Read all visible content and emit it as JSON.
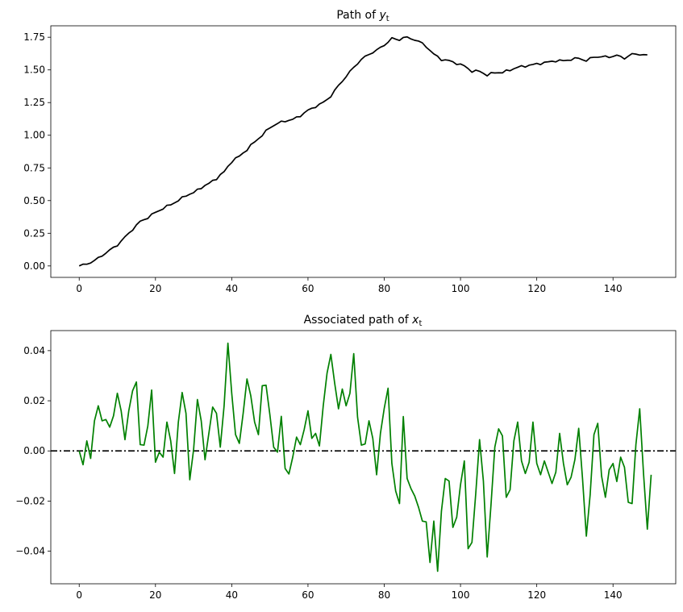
{
  "chart_data": [
    {
      "type": "line",
      "title": "Path of ",
      "title_var": "y",
      "title_sub": "t",
      "xlabel": "",
      "ylabel": "",
      "xlim": [
        -7.45,
        156.45
      ],
      "ylim": [
        -0.0875,
        1.8375
      ],
      "xticks": [
        0,
        20,
        40,
        60,
        80,
        100,
        120,
        140
      ],
      "yticks": [
        0.0,
        0.25,
        0.5,
        0.75,
        1.0,
        1.25,
        1.5,
        1.75
      ],
      "ytick_labels": [
        "0.00",
        "0.25",
        "0.50",
        "0.75",
        "1.00",
        "1.25",
        "1.50",
        "1.75"
      ],
      "color": "#000000",
      "keypoints": [
        [
          0,
          0.0
        ],
        [
          2,
          0.015
        ],
        [
          4,
          0.04
        ],
        [
          6,
          0.08
        ],
        [
          8,
          0.12
        ],
        [
          10,
          0.16
        ],
        [
          12,
          0.22
        ],
        [
          14,
          0.28
        ],
        [
          16,
          0.34
        ],
        [
          18,
          0.37
        ],
        [
          20,
          0.41
        ],
        [
          22,
          0.44
        ],
        [
          24,
          0.47
        ],
        [
          26,
          0.5
        ],
        [
          28,
          0.54
        ],
        [
          30,
          0.56
        ],
        [
          32,
          0.6
        ],
        [
          34,
          0.63
        ],
        [
          36,
          0.67
        ],
        [
          38,
          0.72
        ],
        [
          40,
          0.8
        ],
        [
          42,
          0.84
        ],
        [
          44,
          0.89
        ],
        [
          46,
          0.95
        ],
        [
          48,
          1.0
        ],
        [
          50,
          1.06
        ],
        [
          52,
          1.09
        ],
        [
          54,
          1.11
        ],
        [
          56,
          1.12
        ],
        [
          58,
          1.15
        ],
        [
          60,
          1.19
        ],
        [
          62,
          1.22
        ],
        [
          64,
          1.25
        ],
        [
          66,
          1.3
        ],
        [
          68,
          1.38
        ],
        [
          70,
          1.45
        ],
        [
          72,
          1.52
        ],
        [
          74,
          1.58
        ],
        [
          76,
          1.62
        ],
        [
          78,
          1.65
        ],
        [
          80,
          1.69
        ],
        [
          82,
          1.74
        ],
        [
          84,
          1.73
        ],
        [
          85,
          1.75
        ],
        [
          87,
          1.74
        ],
        [
          89,
          1.72
        ],
        [
          91,
          1.68
        ],
        [
          93,
          1.62
        ],
        [
          95,
          1.58
        ],
        [
          97,
          1.57
        ],
        [
          99,
          1.55
        ],
        [
          101,
          1.53
        ],
        [
          103,
          1.49
        ],
        [
          105,
          1.49
        ],
        [
          107,
          1.46
        ],
        [
          109,
          1.48
        ],
        [
          111,
          1.48
        ],
        [
          113,
          1.5
        ],
        [
          115,
          1.52
        ],
        [
          117,
          1.53
        ],
        [
          119,
          1.54
        ],
        [
          121,
          1.55
        ],
        [
          123,
          1.56
        ],
        [
          125,
          1.57
        ],
        [
          127,
          1.57
        ],
        [
          129,
          1.58
        ],
        [
          131,
          1.59
        ],
        [
          133,
          1.57
        ],
        [
          135,
          1.6
        ],
        [
          137,
          1.6
        ],
        [
          139,
          1.6
        ],
        [
          141,
          1.61
        ],
        [
          143,
          1.59
        ],
        [
          145,
          1.62
        ],
        [
          147,
          1.62
        ],
        [
          149,
          1.61
        ]
      ]
    },
    {
      "type": "line",
      "title": "Associated path of ",
      "title_var": "x",
      "title_sub": "t",
      "xlabel": "",
      "ylabel": "",
      "xlim": [
        -7.45,
        156.45
      ],
      "ylim": [
        -0.053,
        0.048
      ],
      "xticks": [
        0,
        20,
        40,
        60,
        80,
        100,
        120,
        140
      ],
      "yticks": [
        -0.04,
        -0.02,
        0.0,
        0.02,
        0.04
      ],
      "ytick_labels": [
        "−0.04",
        "−0.02",
        "0.00",
        "0.02",
        "0.04"
      ],
      "color": "#008000",
      "reference_line": {
        "y": 0.0,
        "style": "dash-dot",
        "color": "#000000"
      },
      "values": [
        0.0,
        -0.0055,
        0.004,
        -0.003,
        0.012,
        0.018,
        0.012,
        0.0125,
        0.0095,
        0.014,
        0.023,
        0.016,
        0.0045,
        0.016,
        0.024,
        0.0275,
        0.0025,
        0.0023,
        0.01,
        0.0243,
        -0.0045,
        -0.0005,
        -0.0025,
        0.0115,
        0.004,
        -0.009,
        0.0115,
        0.0233,
        0.015,
        -0.0115,
        0.0005,
        0.0205,
        0.012,
        -0.0035,
        0.007,
        0.0175,
        0.015,
        0.0015,
        0.018,
        0.043,
        0.023,
        0.0065,
        0.003,
        0.015,
        0.0287,
        0.022,
        0.0115,
        0.0065,
        0.026,
        0.0262,
        0.0145,
        0.0015,
        -0.0005,
        0.0138,
        -0.007,
        -0.0092,
        -0.0025,
        0.0055,
        0.0025,
        0.0085,
        0.016,
        0.005,
        0.007,
        0.002,
        0.018,
        0.031,
        0.0385,
        0.027,
        0.0168,
        0.0247,
        0.018,
        0.023,
        0.0388,
        0.0135,
        0.0023,
        0.0028,
        0.012,
        0.005,
        -0.0095,
        0.007,
        0.017,
        0.025,
        -0.005,
        -0.016,
        -0.021,
        0.0137,
        -0.011,
        -0.015,
        -0.018,
        -0.0225,
        -0.028,
        -0.0283,
        -0.0445,
        -0.028,
        -0.048,
        -0.024,
        -0.011,
        -0.012,
        -0.0305,
        -0.0265,
        -0.0135,
        -0.004,
        -0.039,
        -0.0365,
        -0.017,
        0.0045,
        -0.012,
        -0.0423,
        -0.0215,
        0.0015,
        0.0088,
        0.006,
        -0.0185,
        -0.0155,
        0.004,
        0.0115,
        -0.004,
        -0.009,
        -0.0045,
        0.0115,
        -0.005,
        -0.0095,
        -0.004,
        -0.0085,
        -0.013,
        -0.0085,
        0.007,
        -0.005,
        -0.0135,
        -0.0105,
        -0.0035,
        0.009,
        -0.011,
        -0.034,
        -0.0175,
        0.0065,
        0.011,
        -0.01,
        -0.0185,
        -0.0075,
        -0.005,
        -0.0122,
        -0.0025,
        -0.0065,
        -0.0205,
        -0.021,
        0.0025,
        0.0168,
        -0.009,
        -0.0312,
        -0.0095
      ]
    }
  ]
}
